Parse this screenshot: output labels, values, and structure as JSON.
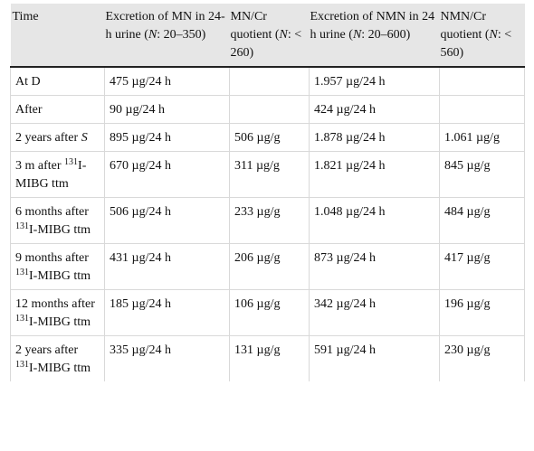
{
  "table": {
    "headers": [
      {
        "pre": "Excretion of MN in 24-h urine (",
        "ital": "N",
        "post": ": 20–350)"
      },
      {
        "pre": "MN/Cr quotient (",
        "ital": "N",
        "post": ": < 260)"
      },
      {
        "pre": "Excretion of NMN in 24 h urine (",
        "ital": "N",
        "post": ": 20–600)"
      },
      {
        "pre": "NMN/Cr quotient (",
        "ital": "N",
        "post": ": < 560)"
      }
    ],
    "time_header": "Time",
    "rows": [
      {
        "time": {
          "pre": "At D"
        },
        "mn": "475 µg/24 h",
        "mncr": "",
        "nmn": "1.957 µg/24 h",
        "nmncr": ""
      },
      {
        "time": {
          "pre": "After"
        },
        "mn": "90 µg/24 h",
        "mncr": "",
        "nmn": "424 µg/24 h",
        "nmncr": ""
      },
      {
        "time": {
          "pre": "2 years after ",
          "ital": "S"
        },
        "mn": "895 µg/24 h",
        "mncr": "506 µg/g",
        "nmn": "1.878 µg/24 h",
        "nmncr": "1.061 µg/g"
      },
      {
        "time": {
          "pre": "3 m after ",
          "sup": "131",
          "post": "I-MIBG ttm"
        },
        "mn": "670 µg/24 h",
        "mncr": "311 µg/g",
        "nmn": "1.821 µg/24 h",
        "nmncr": "845 µg/g"
      },
      {
        "time": {
          "pre": "6 months after ",
          "sup": "131",
          "post": "I-MIBG ttm"
        },
        "mn": "506 µg/24 h",
        "mncr": "233 µg/g",
        "nmn": "1.048 µg/24 h",
        "nmncr": "484 µg/g"
      },
      {
        "time": {
          "pre": "9 months after ",
          "sup": "131",
          "post": "I-MIBG ttm"
        },
        "mn": "431 µg/24 h",
        "mncr": "206 µg/g",
        "nmn": "873 µg/24 h",
        "nmncr": "417 µg/g"
      },
      {
        "time": {
          "pre": "12 months after ",
          "sup": "131",
          "post": "I-MIBG ttm"
        },
        "mn": "185 µg/24 h",
        "mncr": "106 µg/g",
        "nmn": "342 µg/24 h",
        "nmncr": "196 µg/g"
      },
      {
        "time": {
          "pre": "2 years after ",
          "sup": "131",
          "post": "I-MIBG ttm"
        },
        "mn": "335 µg/24 h",
        "mncr": "131 µg/g",
        "nmn": "591 µg/24 h",
        "nmncr": "230 µg/g"
      }
    ]
  }
}
